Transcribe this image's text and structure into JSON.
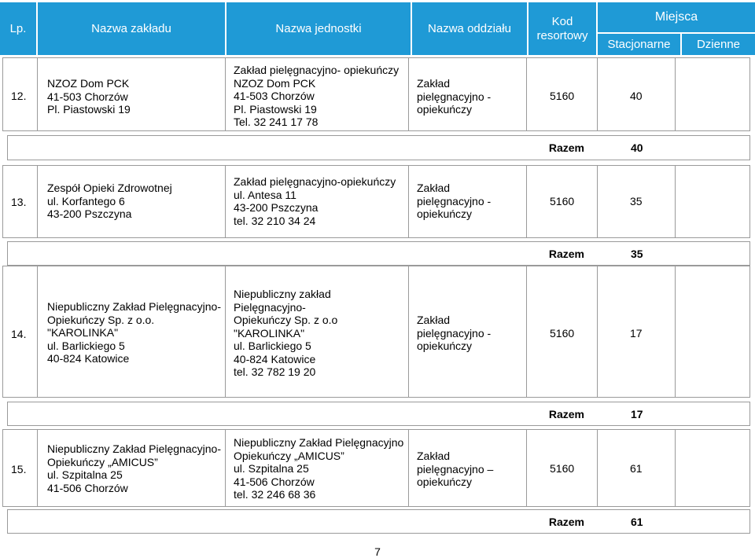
{
  "header": {
    "lp": "Lp.",
    "nazwa_zakladu": "Nazwa zakładu",
    "nazwa_jednostki": "Nazwa jednostki",
    "nazwa_oddzialu": "Nazwa oddziału",
    "kod_resortowy": "Kod\nresortowy",
    "miejsca": "Miejsca",
    "stacjonarne": "Stacjonarne",
    "dzienne": "Dzienne"
  },
  "rows": [
    {
      "lp": "12.",
      "zaklad": "NZOZ Dom PCK\n41-503 Chorzów\nPl. Piastowski 19",
      "jednostka": "Zakład pielęgnacyjno- opiekuńczy\nNZOZ Dom PCK\n41-503 Chorzów\nPl. Piastowski 19\nTel. 32 241 17 78",
      "oddzial": "Zakład\npielęgnacyjno -\nopiekuńczy",
      "kod": "5160",
      "stacjonarne": "40",
      "razem_label": "Razem",
      "razem_value": "40"
    },
    {
      "lp": "13.",
      "zaklad": "Zespół Opieki Zdrowotnej\nul. Korfantego 6\n43-200 Pszczyna",
      "jednostka": "Zakład pielęgnacyjno-opiekuńczy\nul. Antesa 11\n43-200 Pszczyna\ntel. 32 210 34 24",
      "oddzial": "Zakład\npielęgnacyjno -\nopiekuńczy",
      "kod": "5160",
      "stacjonarne": "35",
      "razem_label": "Razem",
      "razem_value": "35"
    },
    {
      "lp": "14.",
      "zaklad": "Niepubliczny Zakład Pielęgnacyjno-\nOpiekuńczy Sp. z o.o.\n\"KAROLINKA\"\nul. Barlickiego 5\n40-824 Katowice",
      "jednostka": "Niepubliczny zakład\nPielęgnacyjno-\nOpiekuńczy Sp. z o.o\n\"KAROLINKA\"\nul. Barlickiego 5\n40-824 Katowice\ntel. 32 782 19 20",
      "oddzial": "Zakład\npielęgnacyjno -\nopiekuńczy",
      "kod": "5160",
      "stacjonarne": "17",
      "razem_label": "Razem",
      "razem_value": "17"
    },
    {
      "lp": "15.",
      "zaklad": "Niepubliczny Zakład Pielęgnacyjno-\nOpiekuńczy „AMICUS”\nul. Szpitalna 25\n41-506 Chorzów",
      "jednostka": "Niepubliczny Zakład Pielęgnacyjno\nOpiekuńczy „AMICUS”\nul. Szpitalna 25\n41-506 Chorzów\ntel. 32 246 68 36",
      "oddzial": "Zakład\npielęgnacyjno –\nopiekuńczy",
      "kod": "5160",
      "stacjonarne": "61",
      "razem_label": "Razem",
      "razem_value": "61"
    }
  ],
  "page_number": "7"
}
